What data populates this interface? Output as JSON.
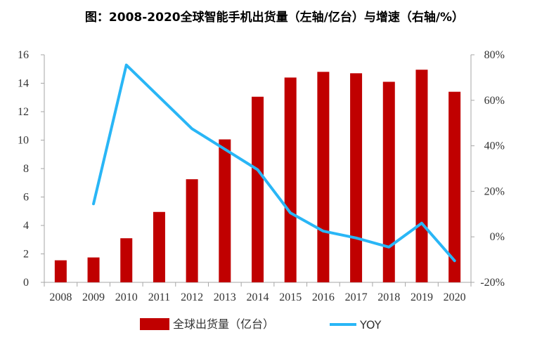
{
  "title": "图：2008-2020全球智能手机出货量（左轴/亿台）与增速（右轴/%）",
  "colors": {
    "bar": "#c00000",
    "line": "#29b6f6",
    "axis": "#a6a6a6"
  },
  "chart_data": {
    "type": "bar",
    "categories": [
      "2008",
      "2009",
      "2010",
      "2011",
      "2012",
      "2013",
      "2014",
      "2015",
      "2016",
      "2017",
      "2018",
      "2019",
      "2020"
    ],
    "series": [
      {
        "name": "全球出货量（亿台）",
        "type": "bar",
        "axis": "left",
        "values": [
          1.55,
          1.75,
          3.1,
          4.95,
          7.25,
          10.05,
          13.05,
          14.4,
          14.8,
          14.7,
          14.1,
          14.95,
          13.4
        ]
      },
      {
        "name": "YOY",
        "type": "line",
        "axis": "right",
        "values": [
          null,
          14.5,
          75.5,
          61.5,
          47.5,
          38.5,
          29.5,
          10.5,
          2.5,
          -0.5,
          -4.5,
          6.0,
          -10.5
        ]
      }
    ],
    "left_axis": {
      "ylim": [
        0,
        16
      ],
      "ticks": [
        "0",
        "2",
        "4",
        "6",
        "8",
        "10",
        "12",
        "14",
        "16"
      ]
    },
    "right_axis": {
      "ylim": [
        -20,
        80
      ],
      "ticks": [
        "-20%",
        "0%",
        "20%",
        "40%",
        "60%",
        "80%"
      ]
    },
    "legend": {
      "position": "bottom",
      "bar_label": "全球出货量（亿台）",
      "line_label": "YOY"
    },
    "grid": false
  }
}
